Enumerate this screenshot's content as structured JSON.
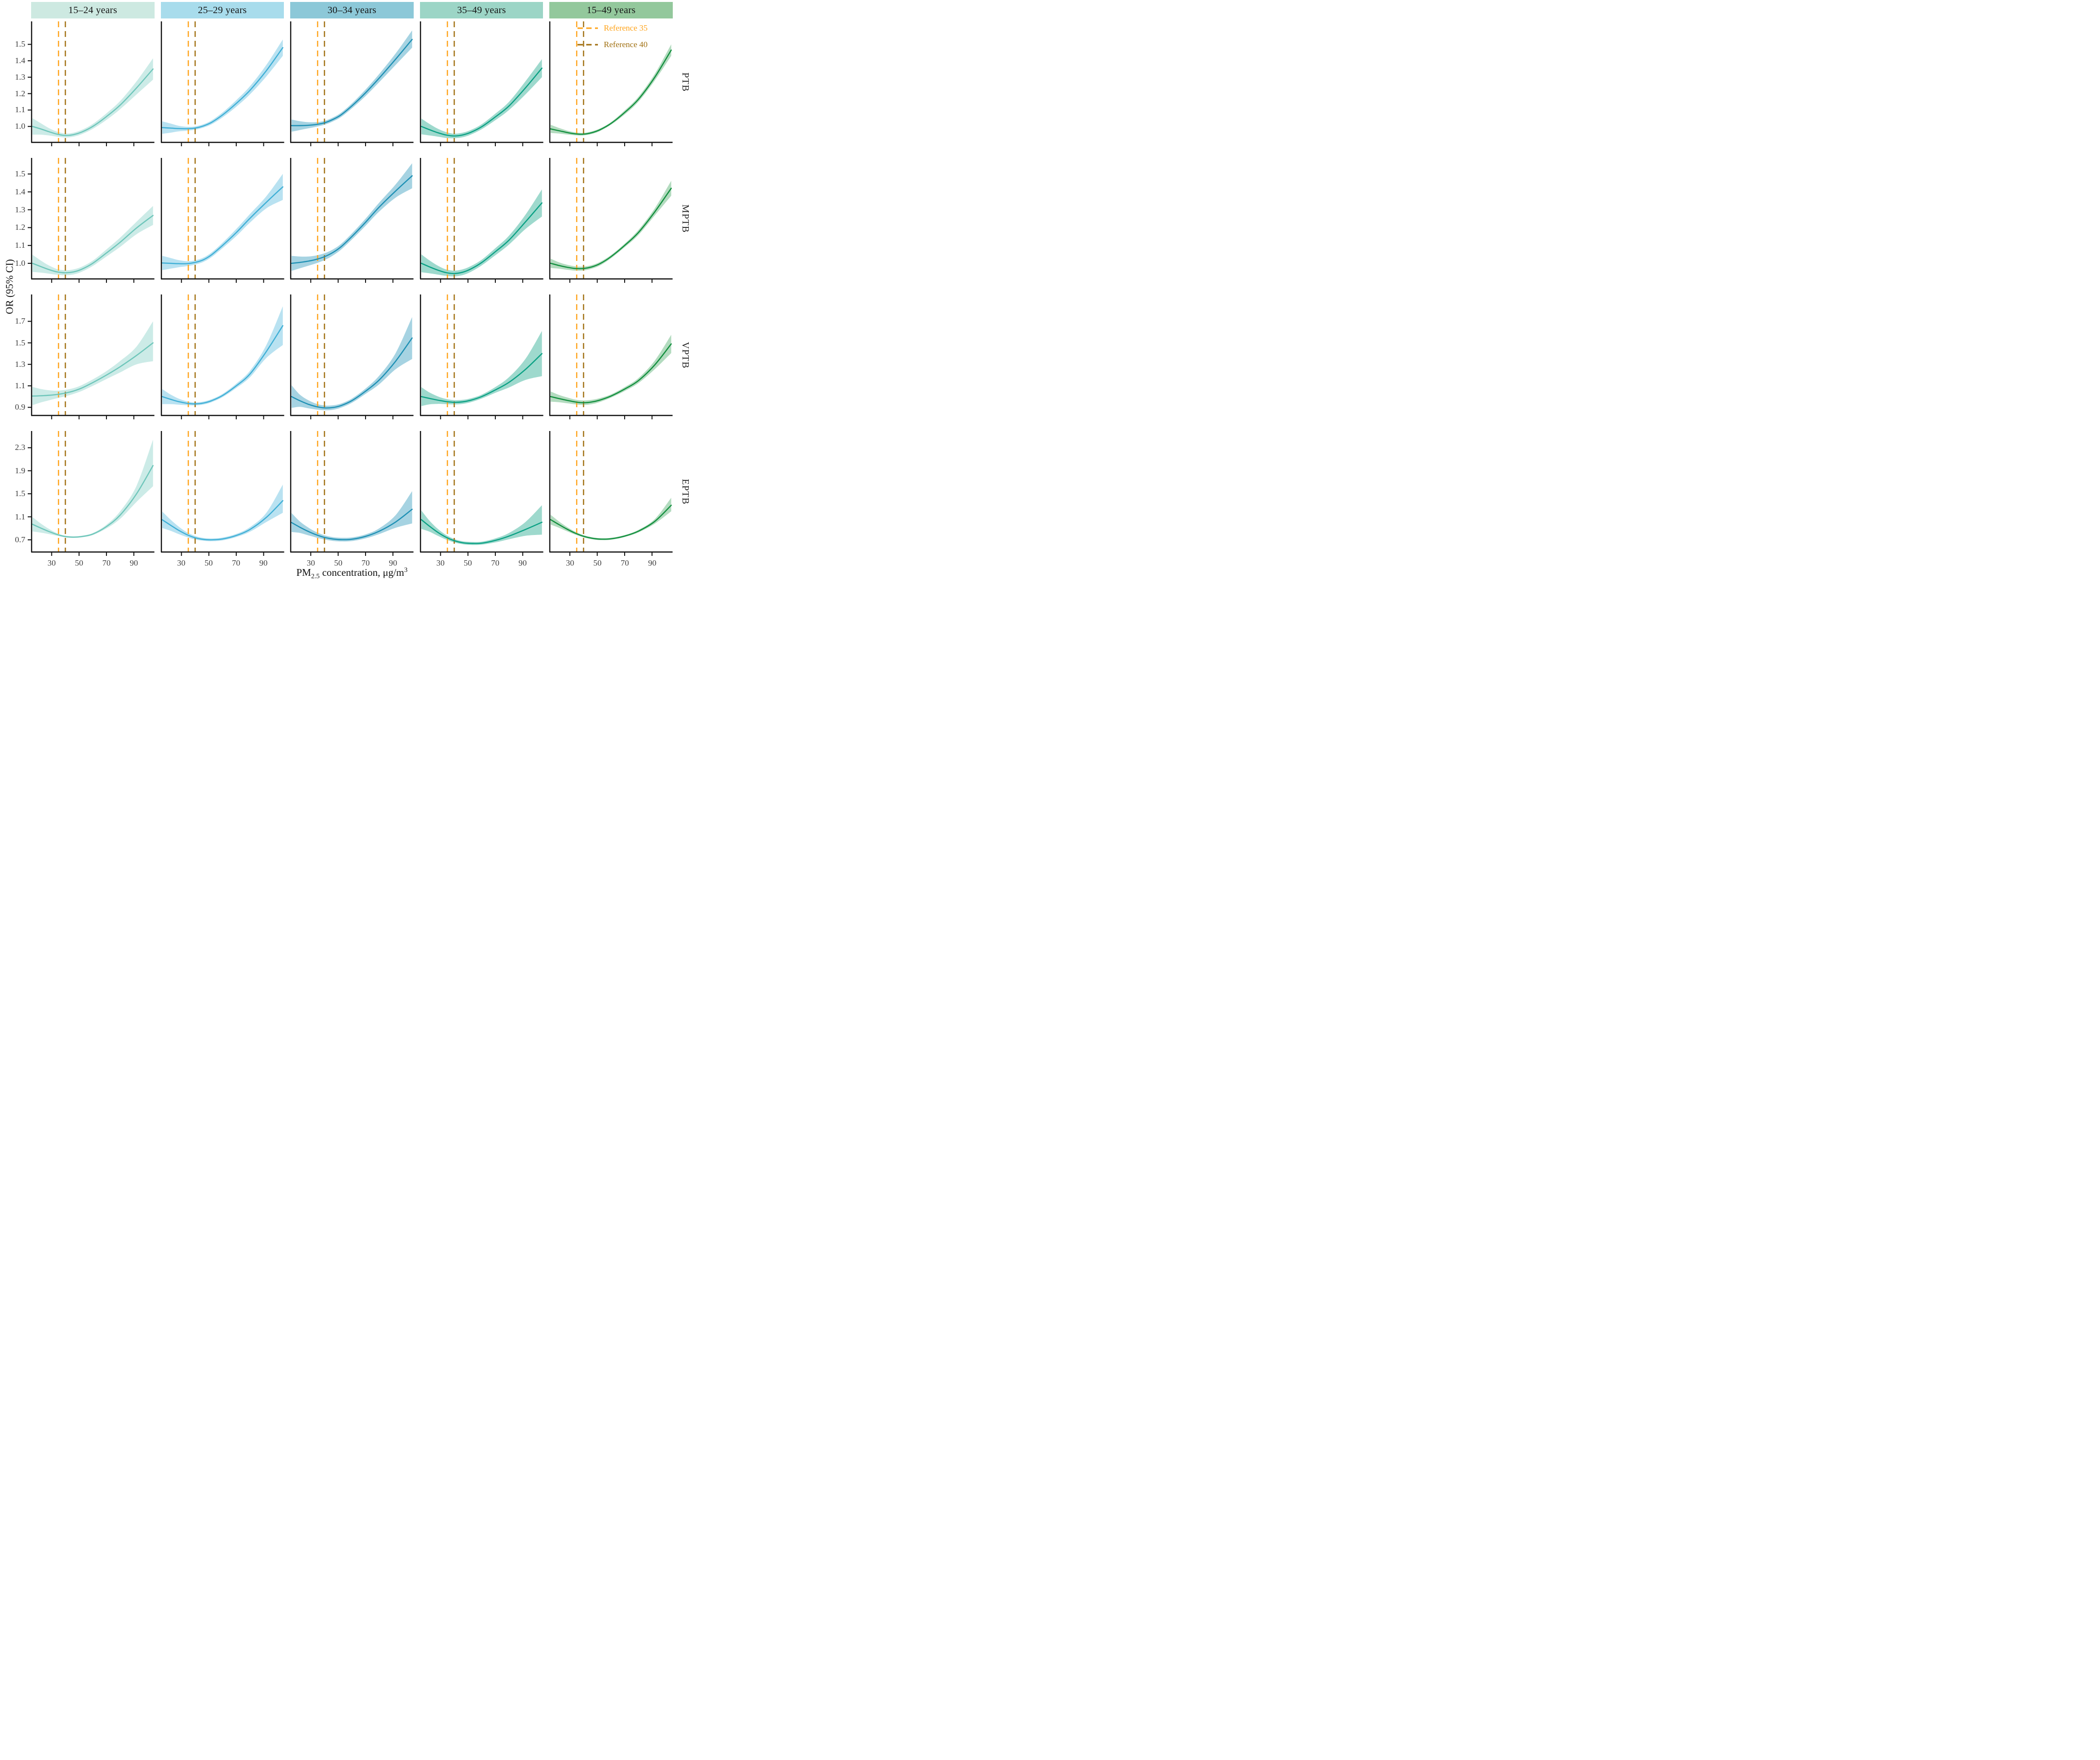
{
  "axes": {
    "y_label": "OR (95% CI)",
    "x_label_prefix": "PM",
    "x_label_sub": "2.5",
    "x_label_mid": " concentration, μg/m",
    "x_label_sup": "3"
  },
  "chart_data": {
    "type": "line",
    "description": "Faceted exposure-response curves with 95% CI ribbons; columns are maternal age groups, rows are preterm birth outcomes.",
    "facet": {
      "columns": [
        "15–24 years",
        "25–29 years",
        "30–34 years",
        "35–49 years",
        "15–49 years"
      ],
      "rows": [
        "PTB",
        "MPTB",
        "VPTB",
        "EPTB"
      ]
    },
    "x_domain": [
      15,
      105
    ],
    "x_ticks": [
      30,
      50,
      70,
      90
    ],
    "x": [
      16,
      22,
      28,
      34,
      40,
      46,
      52,
      60,
      70,
      80,
      92,
      104
    ],
    "row_axes": [
      {
        "row": "PTB",
        "ylim": [
          0.9,
          1.64
        ],
        "ticks": [
          1.0,
          1.1,
          1.2,
          1.3,
          1.4,
          1.5
        ]
      },
      {
        "row": "MPTB",
        "ylim": [
          0.91,
          1.59
        ],
        "ticks": [
          1.0,
          1.1,
          1.2,
          1.3,
          1.4,
          1.5
        ]
      },
      {
        "row": "VPTB",
        "ylim": [
          0.82,
          1.95
        ],
        "ticks": [
          0.9,
          1.1,
          1.3,
          1.5,
          1.7
        ]
      },
      {
        "row": "EPTB",
        "ylim": [
          0.48,
          2.59
        ],
        "ticks": [
          0.7,
          1.1,
          1.5,
          1.9,
          2.3
        ]
      }
    ],
    "column_styles": [
      {
        "header_bg": "#cde9e1",
        "line": "#6ec6ba",
        "band": "rgba(110,198,186,0.35)"
      },
      {
        "header_bg": "#a8dcec",
        "line": "#3fafd6",
        "band": "rgba(100,190,225,0.45)"
      },
      {
        "header_bg": "#8cc8d8",
        "line": "#1e90b4",
        "band": "rgba(58,158,190,0.45)"
      },
      {
        "header_bg": "#9cd5c6",
        "line": "#0ba184",
        "band": "rgba(24,164,137,0.42)"
      },
      {
        "header_bg": "#93c89c",
        "line": "#128f3e",
        "band": "rgba(54,160,88,0.38)"
      }
    ],
    "reference_lines": [
      {
        "label": "Reference  35",
        "x": 35,
        "color": "#FFA319"
      },
      {
        "label": "Reference 40",
        "x": 40,
        "color": "#A06F10"
      }
    ],
    "legend_position": "top-right",
    "grid": false,
    "panels": [
      {
        "row": "PTB",
        "column": "15–24 years",
        "mean": [
          1.0,
          0.985,
          0.968,
          0.953,
          0.945,
          0.95,
          0.966,
          1.0,
          1.06,
          1.13,
          1.235,
          1.35
        ],
        "lower": [
          0.95,
          0.95,
          0.945,
          0.938,
          0.933,
          0.938,
          0.953,
          0.985,
          1.04,
          1.105,
          1.195,
          1.285
        ],
        "upper": [
          1.05,
          1.02,
          0.99,
          0.968,
          0.957,
          0.962,
          0.979,
          1.015,
          1.08,
          1.155,
          1.275,
          1.415
        ]
      },
      {
        "row": "PTB",
        "column": "25–29 years",
        "mean": [
          0.993,
          0.99,
          0.987,
          0.986,
          0.99,
          1.003,
          1.025,
          1.07,
          1.14,
          1.22,
          1.34,
          1.48
        ],
        "lower": [
          0.955,
          0.962,
          0.97,
          0.974,
          0.98,
          0.993,
          1.013,
          1.055,
          1.12,
          1.195,
          1.305,
          1.43
        ],
        "upper": [
          1.031,
          1.018,
          1.004,
          0.998,
          1.0,
          1.013,
          1.037,
          1.085,
          1.16,
          1.245,
          1.375,
          1.53
        ]
      },
      {
        "row": "PTB",
        "column": "30–34 years",
        "mean": [
          1.005,
          1.005,
          1.007,
          1.012,
          1.022,
          1.042,
          1.07,
          1.125,
          1.205,
          1.295,
          1.41,
          1.53
        ],
        "lower": [
          0.968,
          0.978,
          0.988,
          0.998,
          1.01,
          1.03,
          1.057,
          1.11,
          1.185,
          1.27,
          1.375,
          1.48
        ],
        "upper": [
          1.042,
          1.032,
          1.026,
          1.026,
          1.034,
          1.054,
          1.083,
          1.14,
          1.225,
          1.32,
          1.445,
          1.585
        ]
      },
      {
        "row": "PTB",
        "column": "35–49 years",
        "mean": [
          1.0,
          0.98,
          0.962,
          0.948,
          0.942,
          0.948,
          0.964,
          0.998,
          1.058,
          1.125,
          1.235,
          1.355
        ],
        "lower": [
          0.952,
          0.945,
          0.938,
          0.93,
          0.928,
          0.934,
          0.95,
          0.983,
          1.038,
          1.1,
          1.195,
          1.3
        ],
        "upper": [
          1.048,
          1.015,
          0.986,
          0.966,
          0.956,
          0.962,
          0.978,
          1.013,
          1.078,
          1.15,
          1.275,
          1.41
        ]
      },
      {
        "row": "PTB",
        "column": "15–49 years",
        "mean": [
          0.985,
          0.974,
          0.963,
          0.955,
          0.953,
          0.962,
          0.98,
          1.018,
          1.085,
          1.165,
          1.3,
          1.465
        ],
        "lower": [
          0.96,
          0.957,
          0.951,
          0.946,
          0.945,
          0.954,
          0.972,
          1.01,
          1.073,
          1.15,
          1.28,
          1.43
        ],
        "upper": [
          1.01,
          0.991,
          0.975,
          0.964,
          0.961,
          0.97,
          0.988,
          1.026,
          1.097,
          1.18,
          1.32,
          1.5
        ]
      },
      {
        "row": "MPTB",
        "column": "15–24 years",
        "mean": [
          1.0,
          0.982,
          0.965,
          0.952,
          0.947,
          0.952,
          0.967,
          1.0,
          1.058,
          1.118,
          1.198,
          1.268
        ],
        "lower": [
          0.952,
          0.948,
          0.942,
          0.936,
          0.933,
          0.938,
          0.953,
          0.985,
          1.038,
          1.092,
          1.163,
          1.215
        ],
        "upper": [
          1.048,
          1.016,
          0.988,
          0.968,
          0.961,
          0.966,
          0.981,
          1.015,
          1.078,
          1.144,
          1.233,
          1.321
        ]
      },
      {
        "row": "MPTB",
        "column": "25–29 years",
        "mean": [
          1.002,
          1.0,
          0.998,
          0.998,
          1.005,
          1.02,
          1.048,
          1.1,
          1.172,
          1.252,
          1.342,
          1.428
        ],
        "lower": [
          0.962,
          0.97,
          0.978,
          0.984,
          0.993,
          1.008,
          1.035,
          1.085,
          1.152,
          1.228,
          1.308,
          1.355
        ],
        "upper": [
          1.042,
          1.03,
          1.018,
          1.012,
          1.017,
          1.032,
          1.061,
          1.115,
          1.192,
          1.276,
          1.376,
          1.501
        ]
      },
      {
        "row": "MPTB",
        "column": "30–34 years",
        "mean": [
          1.0,
          1.005,
          1.012,
          1.022,
          1.037,
          1.06,
          1.092,
          1.15,
          1.23,
          1.315,
          1.405,
          1.49
        ],
        "lower": [
          0.958,
          0.972,
          0.986,
          1.0,
          1.018,
          1.043,
          1.076,
          1.133,
          1.21,
          1.29,
          1.368,
          1.42
        ],
        "upper": [
          1.042,
          1.038,
          1.038,
          1.044,
          1.056,
          1.077,
          1.108,
          1.167,
          1.25,
          1.34,
          1.442,
          1.56
        ]
      },
      {
        "row": "MPTB",
        "column": "35–49 years",
        "mean": [
          1.0,
          0.98,
          0.962,
          0.948,
          0.943,
          0.95,
          0.968,
          1.004,
          1.065,
          1.13,
          1.232,
          1.338
        ],
        "lower": [
          0.95,
          0.944,
          0.937,
          0.93,
          0.927,
          0.934,
          0.952,
          0.988,
          1.045,
          1.105,
          1.192,
          1.262
        ],
        "upper": [
          1.05,
          1.016,
          0.987,
          0.966,
          0.959,
          0.966,
          0.984,
          1.02,
          1.085,
          1.155,
          1.272,
          1.414
        ]
      },
      {
        "row": "MPTB",
        "column": "15–49 years",
        "mean": [
          1.0,
          0.988,
          0.978,
          0.971,
          0.971,
          0.98,
          0.998,
          1.037,
          1.1,
          1.172,
          1.288,
          1.42
        ],
        "lower": [
          0.974,
          0.97,
          0.964,
          0.959,
          0.96,
          0.97,
          0.988,
          1.028,
          1.09,
          1.158,
          1.268,
          1.378
        ],
        "upper": [
          1.026,
          1.006,
          0.992,
          0.983,
          0.982,
          0.99,
          1.008,
          1.046,
          1.11,
          1.186,
          1.308,
          1.462
        ]
      },
      {
        "row": "VPTB",
        "column": "15–24 years",
        "mean": [
          1.005,
          1.008,
          1.012,
          1.02,
          1.033,
          1.052,
          1.08,
          1.13,
          1.2,
          1.278,
          1.383,
          1.5
        ],
        "lower": [
          0.92,
          0.945,
          0.965,
          0.985,
          1.003,
          1.025,
          1.053,
          1.1,
          1.163,
          1.225,
          1.3,
          1.33
        ],
        "upper": [
          1.09,
          1.071,
          1.059,
          1.055,
          1.063,
          1.079,
          1.107,
          1.16,
          1.237,
          1.331,
          1.466,
          1.7
        ]
      },
      {
        "row": "VPTB",
        "column": "25–29 years",
        "mean": [
          1.0,
          0.975,
          0.953,
          0.938,
          0.932,
          0.94,
          0.962,
          1.01,
          1.1,
          1.21,
          1.42,
          1.66
        ],
        "lower": [
          0.93,
          0.93,
          0.925,
          0.92,
          0.918,
          0.926,
          0.948,
          0.995,
          1.08,
          1.18,
          1.36,
          1.48
        ],
        "upper": [
          1.07,
          1.02,
          0.981,
          0.956,
          0.946,
          0.954,
          0.976,
          1.025,
          1.12,
          1.24,
          1.48,
          1.84
        ]
      },
      {
        "row": "VPTB",
        "column": "30–34 years",
        "mean": [
          1.0,
          0.962,
          0.93,
          0.907,
          0.895,
          0.898,
          0.916,
          0.962,
          1.05,
          1.155,
          1.33,
          1.545
        ],
        "lower": [
          0.895,
          0.905,
          0.892,
          0.88,
          0.873,
          0.877,
          0.897,
          0.942,
          1.025,
          1.115,
          1.255,
          1.35
        ],
        "upper": [
          1.105,
          1.019,
          0.968,
          0.934,
          0.917,
          0.919,
          0.935,
          0.982,
          1.075,
          1.195,
          1.405,
          1.74
        ]
      },
      {
        "row": "VPTB",
        "column": "35–49 years",
        "mean": [
          1.0,
          0.983,
          0.967,
          0.954,
          0.947,
          0.951,
          0.966,
          1.0,
          1.062,
          1.133,
          1.253,
          1.4
        ],
        "lower": [
          0.912,
          0.928,
          0.932,
          0.93,
          0.927,
          0.932,
          0.948,
          0.982,
          1.035,
          1.085,
          1.155,
          1.19
        ],
        "upper": [
          1.088,
          1.038,
          1.002,
          0.978,
          0.967,
          0.97,
          0.984,
          1.018,
          1.089,
          1.181,
          1.351,
          1.61
        ]
      },
      {
        "row": "VPTB",
        "column": "15–49 years",
        "mean": [
          1.0,
          0.982,
          0.965,
          0.95,
          0.943,
          0.95,
          0.968,
          1.005,
          1.07,
          1.148,
          1.295,
          1.49
        ],
        "lower": [
          0.952,
          0.948,
          0.938,
          0.928,
          0.922,
          0.93,
          0.95,
          0.99,
          1.052,
          1.125,
          1.255,
          1.405
        ],
        "upper": [
          1.048,
          1.016,
          0.992,
          0.972,
          0.964,
          0.97,
          0.986,
          1.02,
          1.088,
          1.171,
          1.335,
          1.575
        ]
      },
      {
        "row": "EPTB",
        "column": "15–24 years",
        "mean": [
          0.97,
          0.905,
          0.845,
          0.792,
          0.757,
          0.747,
          0.757,
          0.8,
          0.93,
          1.13,
          1.5,
          1.99
        ],
        "lower": [
          0.845,
          0.825,
          0.8,
          0.77,
          0.742,
          0.733,
          0.743,
          0.783,
          0.898,
          1.065,
          1.36,
          1.63
        ],
        "upper": [
          1.095,
          0.985,
          0.89,
          0.814,
          0.772,
          0.761,
          0.771,
          0.817,
          0.962,
          1.195,
          1.64,
          2.44
        ]
      },
      {
        "row": "EPTB",
        "column": "25–29 years",
        "mean": [
          1.048,
          0.955,
          0.865,
          0.79,
          0.736,
          0.708,
          0.7,
          0.715,
          0.775,
          0.88,
          1.09,
          1.38
        ],
        "lower": [
          0.905,
          0.858,
          0.8,
          0.748,
          0.705,
          0.683,
          0.676,
          0.69,
          0.748,
          0.84,
          1.01,
          1.17
        ],
        "upper": [
          1.191,
          1.052,
          0.93,
          0.832,
          0.767,
          0.733,
          0.724,
          0.74,
          0.802,
          0.92,
          1.17,
          1.66
        ]
      },
      {
        "row": "EPTB",
        "column": "30–34 years",
        "mean": [
          1.0,
          0.92,
          0.848,
          0.788,
          0.742,
          0.715,
          0.704,
          0.71,
          0.76,
          0.85,
          1.01,
          1.23
        ],
        "lower": [
          0.835,
          0.82,
          0.78,
          0.74,
          0.705,
          0.682,
          0.672,
          0.678,
          0.725,
          0.8,
          0.91,
          0.985
        ],
        "upper": [
          1.165,
          1.02,
          0.916,
          0.836,
          0.779,
          0.748,
          0.736,
          0.742,
          0.795,
          0.9,
          1.13,
          1.545
        ]
      },
      {
        "row": "EPTB",
        "column": "35–49 years",
        "mean": [
          1.05,
          0.935,
          0.83,
          0.745,
          0.685,
          0.65,
          0.638,
          0.642,
          0.69,
          0.765,
          0.88,
          1.005
        ],
        "lower": [
          0.89,
          0.84,
          0.77,
          0.705,
          0.655,
          0.624,
          0.612,
          0.616,
          0.655,
          0.71,
          0.77,
          0.79
        ],
        "upper": [
          1.21,
          1.03,
          0.89,
          0.785,
          0.715,
          0.676,
          0.664,
          0.668,
          0.725,
          0.82,
          1.01,
          1.3
        ]
      },
      {
        "row": "EPTB",
        "column": "15–49 years",
        "mean": [
          1.05,
          0.965,
          0.885,
          0.815,
          0.762,
          0.728,
          0.712,
          0.718,
          0.765,
          0.85,
          1.02,
          1.3
        ],
        "lower": [
          0.965,
          0.91,
          0.848,
          0.79,
          0.742,
          0.71,
          0.695,
          0.7,
          0.748,
          0.828,
          0.98,
          1.195
        ],
        "upper": [
          1.135,
          1.02,
          0.922,
          0.84,
          0.782,
          0.746,
          0.729,
          0.736,
          0.782,
          0.872,
          1.06,
          1.43
        ]
      }
    ]
  }
}
